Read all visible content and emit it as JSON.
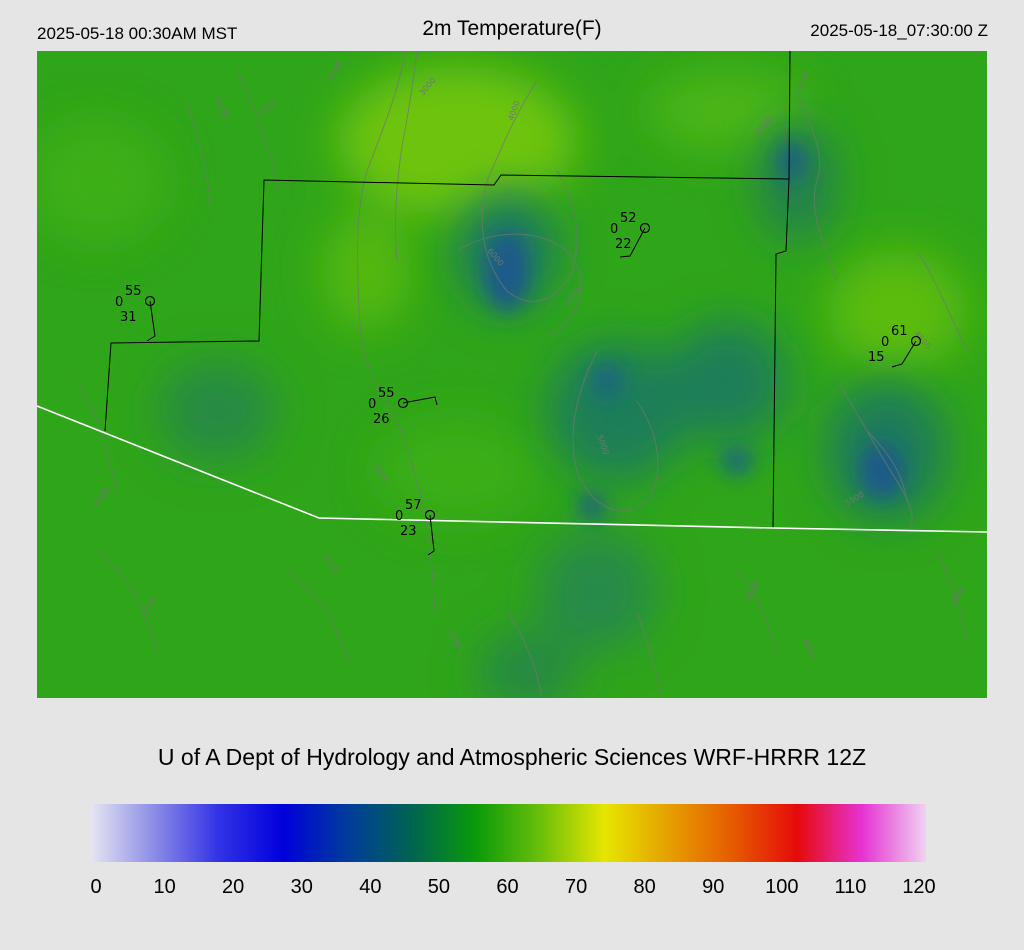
{
  "header": {
    "left_time": "2025-05-18 00:30AM MST",
    "title": "2m Temperature(F)",
    "right_time": "2025-05-18_07:30:00 Z"
  },
  "credit": "U of A Dept of Hydrology and Atmospheric Sciences WRF-HRRR 12Z",
  "colorbar": {
    "tick_labels": [
      "0",
      "10",
      "20",
      "30",
      "40",
      "50",
      "60",
      "70",
      "80",
      "90",
      "100",
      "110",
      "120"
    ],
    "range": [
      0,
      120
    ],
    "colors": [
      "#e6e6f2",
      "#8c8ce6",
      "#3232e6",
      "#0000dc",
      "#003c9c",
      "#006450",
      "#0a9a0a",
      "#6abf0a",
      "#e6e600",
      "#e6a000",
      "#e65a00",
      "#e60a0a",
      "#e632d2",
      "#f0d2f0"
    ]
  },
  "map": {
    "field_colors": {
      "base": "#2fa519",
      "warm": "#6ec40c",
      "cool": "#1f7a5a",
      "coldest": "#1d5a8a"
    },
    "boundary_color": "#ffffff",
    "county_color": "#000000",
    "contour_color": "#6d7a6d"
  },
  "stations": [
    {
      "temp": "55",
      "wind": "0",
      "dew": "31"
    },
    {
      "temp": "55",
      "wind": "0",
      "dew": "26"
    },
    {
      "temp": "57",
      "wind": "0",
      "dew": "23"
    },
    {
      "temp": "52",
      "wind": "0",
      "dew": "22"
    },
    {
      "temp": "61",
      "wind": "0",
      "dew": "15"
    }
  ],
  "contour_labels": [
    "3500",
    "3000",
    "4000",
    "4500",
    "6000",
    "4000",
    "5000",
    "4500",
    "5500",
    "4000",
    "4500",
    "5000",
    "6500",
    "4500",
    "4000",
    "5500",
    "5000",
    "4500",
    "3500",
    "4000"
  ]
}
